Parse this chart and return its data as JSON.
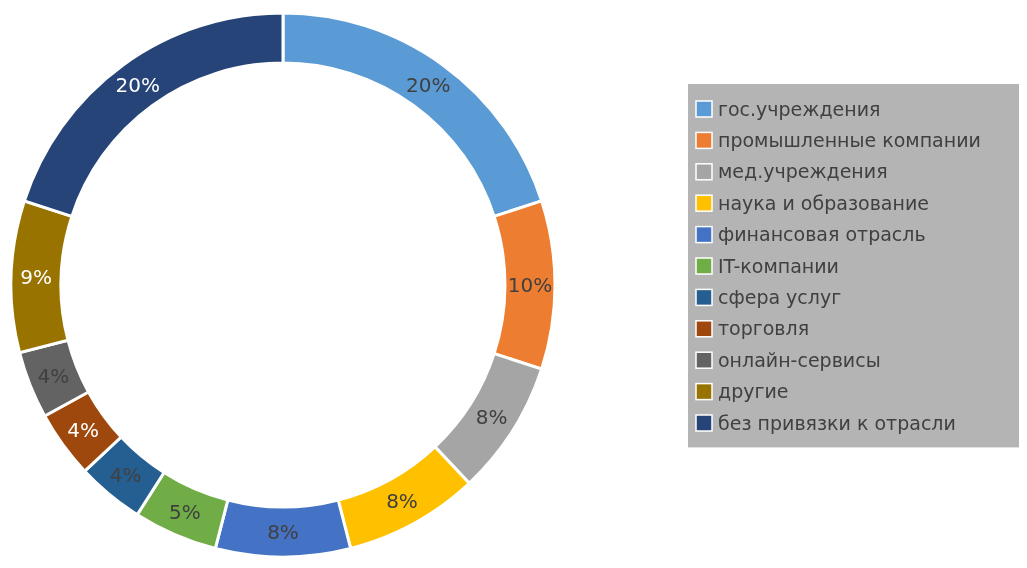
{
  "chart_data": {
    "type": "donut",
    "categories": [
      "гос.учреждения",
      "промышленные компании",
      "мед.учреждения",
      "наука и образование",
      "финансовая отрасль",
      "IT-компании",
      "сфера услуг",
      "торговля",
      "онлайн-сервисы",
      "другие",
      "без привязки к отрасли"
    ],
    "values": [
      20,
      10,
      8,
      8,
      8,
      5,
      4,
      4,
      4,
      9,
      20
    ],
    "colors": [
      "#5b9bd5",
      "#ed7d31",
      "#a5a5a5",
      "#ffc000",
      "#4472c4",
      "#70ad47",
      "#255e91",
      "#9e480e",
      "#636363",
      "#997300",
      "#264478"
    ],
    "value_labels": [
      "20%",
      "10%",
      "8%",
      "8%",
      "8%",
      "5%",
      "4%",
      "4%",
      "4%",
      "9%",
      "20%"
    ],
    "legend": "right"
  }
}
